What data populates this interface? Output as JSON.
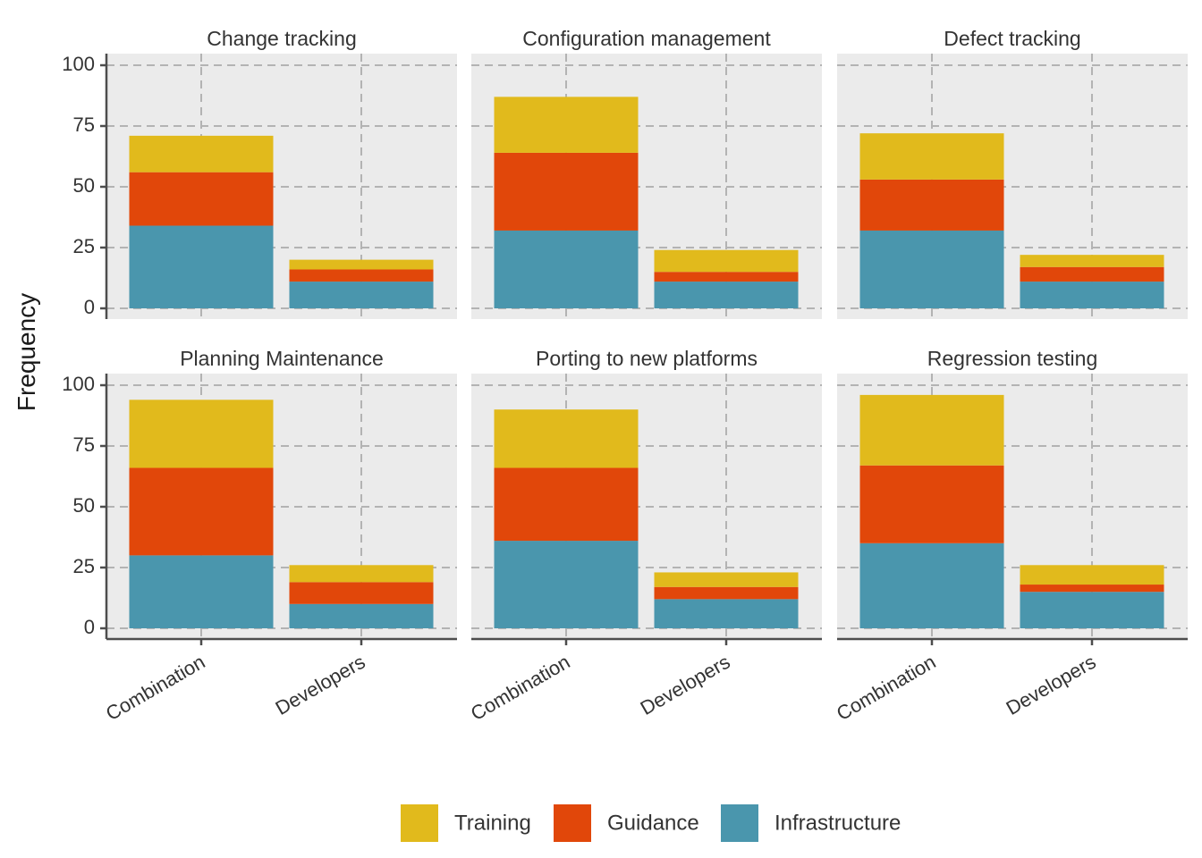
{
  "chart_data": {
    "type": "bar",
    "stacked": true,
    "ylabel": "Frequency",
    "xlabel": "",
    "ylim": [
      0,
      100
    ],
    "yticks": [
      0,
      25,
      50,
      75,
      100
    ],
    "categories": [
      "Combination",
      "Developers"
    ],
    "grid": "dashed",
    "legend_position": "bottom",
    "series": [
      {
        "name": "Infrastructure",
        "color": "#4A96AD"
      },
      {
        "name": "Guidance",
        "color": "#E1470A"
      },
      {
        "name": "Training",
        "color": "#E1BA1C"
      }
    ],
    "legend": [
      "Training",
      "Guidance",
      "Infrastructure"
    ],
    "panels": [
      {
        "title": "Change tracking",
        "values": {
          "Infrastructure": [
            34,
            11
          ],
          "Guidance": [
            22,
            5
          ],
          "Training": [
            15,
            4
          ]
        }
      },
      {
        "title": "Configuration management",
        "values": {
          "Infrastructure": [
            32,
            11
          ],
          "Guidance": [
            32,
            4
          ],
          "Training": [
            23,
            9
          ]
        }
      },
      {
        "title": "Defect tracking",
        "values": {
          "Infrastructure": [
            32,
            11
          ],
          "Guidance": [
            21,
            6
          ],
          "Training": [
            19,
            5
          ]
        }
      },
      {
        "title": "Planning Maintenance",
        "values": {
          "Infrastructure": [
            30,
            10
          ],
          "Guidance": [
            36,
            9
          ],
          "Training": [
            28,
            7
          ]
        }
      },
      {
        "title": "Porting to new platforms",
        "values": {
          "Infrastructure": [
            36,
            12
          ],
          "Guidance": [
            30,
            5
          ],
          "Training": [
            24,
            6
          ]
        }
      },
      {
        "title": "Regression testing",
        "values": {
          "Infrastructure": [
            35,
            15
          ],
          "Guidance": [
            32,
            3
          ],
          "Training": [
            29,
            8
          ]
        }
      }
    ]
  }
}
